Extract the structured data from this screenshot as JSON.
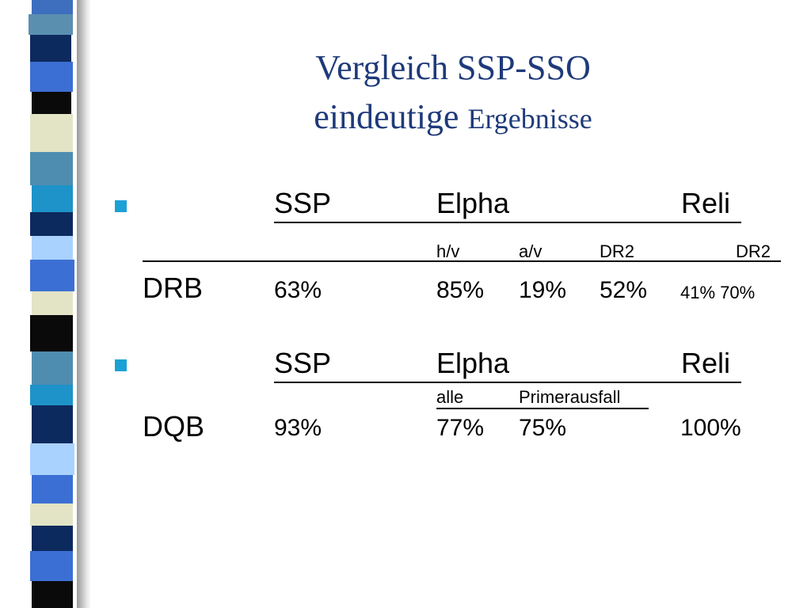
{
  "title": {
    "line1": "Vergleich SSP-SSO",
    "line2_a": "eindeutige",
    "line2_b": "Ergebnisse"
  },
  "section1": {
    "headers": [
      "SSP",
      "Elpha",
      "Reli"
    ],
    "subheaders": [
      "h/v",
      "a/v",
      "DR2",
      "DR2"
    ],
    "row_label": "DRB",
    "values": [
      "63%",
      "85%",
      "19%",
      "52%"
    ],
    "values_small": "41% 70%"
  },
  "section2": {
    "headers": [
      "SSP",
      "Elpha",
      "Reli"
    ],
    "subheaders": [
      "alle",
      "Primerausfall"
    ],
    "row_label": "DQB",
    "values": [
      "93%",
      "77%",
      "75%",
      "100%"
    ]
  },
  "colors": {
    "title": "#1f3a7a",
    "bullet": "#1ba1d6"
  }
}
